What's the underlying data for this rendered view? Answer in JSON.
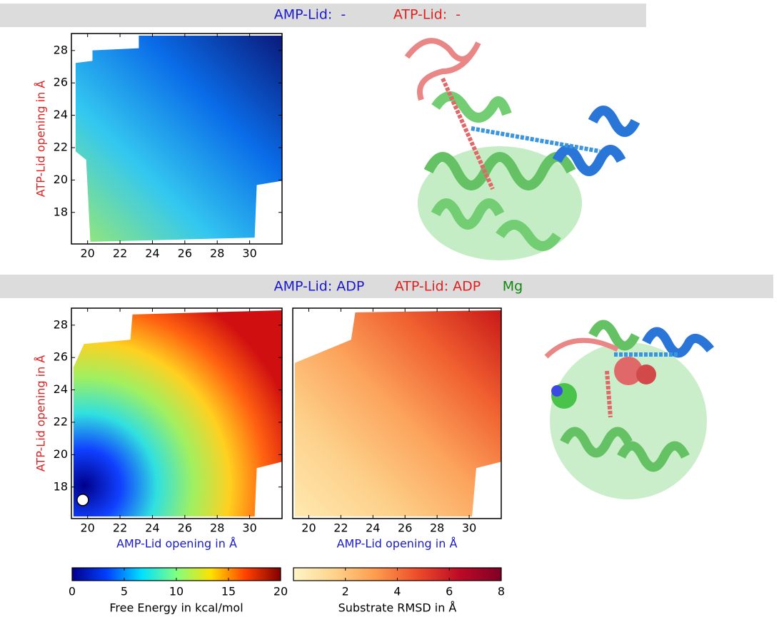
{
  "headers": [
    {
      "items": [
        {
          "text": "AMP-Lid:  -",
          "color": "#1a1acc"
        },
        {
          "text": "ATP-Lid:  -",
          "color": "#dd2222"
        }
      ]
    },
    {
      "items": [
        {
          "text": "AMP-Lid: ADP",
          "color": "#1a1acc"
        },
        {
          "text": "ATP-Lid: ADP",
          "color": "#dd2222"
        },
        {
          "text": "Mg",
          "color": "#118811"
        }
      ]
    }
  ],
  "chart_data": [
    {
      "type": "heatmap",
      "ylabel": "ATP-Lid opening in Å",
      "ylabel_color": "#dd2222",
      "xlim": [
        19,
        32
      ],
      "ylim": [
        16.05,
        29.05
      ],
      "xticks": [
        20,
        22,
        24,
        26,
        28,
        30
      ],
      "yticks": [
        18,
        20,
        22,
        24,
        26,
        28
      ],
      "colors": [
        "#9be870",
        "#33c8f0",
        "#0a6ce8",
        "#0a1a7a"
      ]
    },
    {
      "type": "heatmap",
      "xlabel": "AMP-Lid opening in Å",
      "xlabel_color": "#1a1acc",
      "ylabel": "ATP-Lid opening in Å",
      "ylabel_color": "#dd2222",
      "xlim": [
        19,
        32
      ],
      "ylim": [
        16.05,
        29.05
      ],
      "xticks": [
        20,
        22,
        24,
        26,
        28,
        30
      ],
      "yticks": [
        18,
        20,
        22,
        24,
        26,
        28
      ],
      "colors": [
        "#00008a",
        "#1040ff",
        "#30e0e0",
        "#a0f060",
        "#ffd020",
        "#ff6010",
        "#d01010"
      ],
      "points": {
        "x": [
          19.7
        ],
        "y": [
          17.2
        ]
      }
    },
    {
      "type": "heatmap",
      "xlabel": "AMP-Lid opening in Å",
      "xlabel_color": "#1a1acc",
      "xlim": [
        19,
        32
      ],
      "ylim": [
        16.05,
        29.05
      ],
      "xticks": [
        20,
        22,
        24,
        26,
        28,
        30
      ],
      "colors": [
        "#ffe9b0",
        "#fdd08a",
        "#fca45c",
        "#f06030",
        "#c81818"
      ]
    },
    {
      "type": "colorbar",
      "label": "Free Energy in kcal/mol",
      "xlim": [
        0,
        20
      ],
      "xticks": [
        0,
        5,
        10,
        15,
        20
      ],
      "colors": [
        "#00008a",
        "#0040ff",
        "#00e0ff",
        "#80ff80",
        "#ffe000",
        "#ff4000",
        "#800000"
      ]
    },
    {
      "type": "colorbar",
      "label": "Substrate RMSD in Å",
      "xlim": [
        0,
        8
      ],
      "xticks": [
        2,
        4,
        6,
        8
      ],
      "colors": [
        "#fff5c8",
        "#fed28a",
        "#fd9a4c",
        "#ec4b2a",
        "#bc0a26",
        "#800026"
      ]
    }
  ]
}
